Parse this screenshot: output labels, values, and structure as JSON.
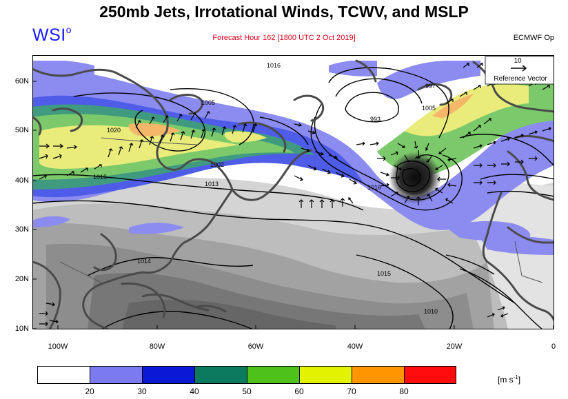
{
  "title": "250mb Jets, Irrotational Winds, TCWV, and MSLP",
  "logo": {
    "text": "WSI",
    "mark": "o"
  },
  "subtitle": "Forecast Hour 162 [1800 UTC 2 Oct 2019]",
  "model": "ECMWF Op",
  "reference_vector": {
    "value": "10",
    "label": "Reference Vector"
  },
  "lat_labels": [
    "60N",
    "50N",
    "40N",
    "30N",
    "20N",
    "10N"
  ],
  "lon_labels": [
    "100W",
    "80W",
    "60W",
    "40W",
    "20W",
    "0"
  ],
  "isobar_labels": [
    "1005",
    "1020",
    "1002",
    "1015",
    "1013",
    "1014",
    "1016",
    "1015",
    "1016",
    "993",
    "997",
    "1005",
    "1010"
  ],
  "colorbar": {
    "ticks": [
      "20",
      "30",
      "40",
      "50",
      "60",
      "70",
      "80"
    ],
    "colors": [
      "#ffffff",
      "#7b7bef",
      "#0a19d6",
      "#0c7a5e",
      "#4ec21a",
      "#e3f200",
      "#ff9500",
      "#ff0d0d"
    ],
    "units_label": "[m s",
    "units_exp": "-1",
    "units_close": "]"
  },
  "colors": {
    "jet_light": "#8b8bf0",
    "jet_dark": "#1e2ad8",
    "jet_teal": "#3f9a80",
    "jet_green": "#7bc96a",
    "jet_yellow": "#e9ec7a",
    "jet_orange": "#f4b76a",
    "tcwv_dark": "#7a7a7a",
    "tcwv_light": "#d6d6d6"
  }
}
